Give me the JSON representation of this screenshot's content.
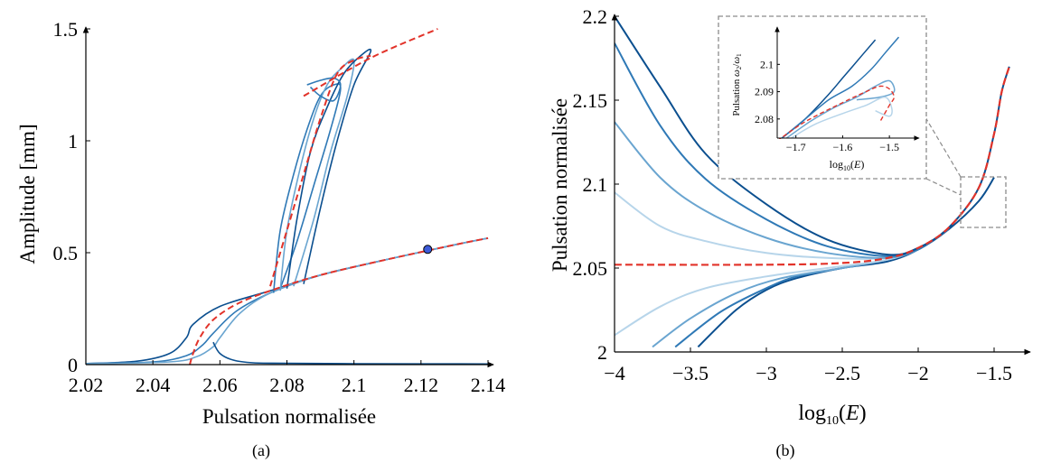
{
  "colors": {
    "branch_dark": "#0b4f8f",
    "branch_mid": "#2f79b6",
    "branch_light": "#6aa5d0",
    "branch_pale": "#b7d5ea",
    "backbone": "#e2332a",
    "marker_fill": "#3d5bd9",
    "inset_border": "#8c8c8c"
  },
  "chart_data": [
    {
      "type": "line",
      "caption": "(a)",
      "xlabel": "Pulsation normalisée",
      "ylabel": "Amplitude [mm]",
      "xlim": [
        2.02,
        2.14
      ],
      "ylim": [
        0,
        1.5
      ],
      "xticks": [
        "2.02",
        "2.04",
        "2.06",
        "2.08",
        "2.1",
        "2.12",
        "2.14"
      ],
      "yticks": [
        "0",
        "0.5",
        "1",
        "1.5"
      ],
      "grid": false,
      "marker": {
        "x": 2.122,
        "y": 0.515
      },
      "backbone": [
        {
          "name": "",
          "x": [
            2.051,
            2.052,
            2.054,
            2.058,
            2.065,
            2.075,
            2.09,
            2.11,
            2.13,
            2.14
          ],
          "y": [
            0.0,
            0.05,
            0.12,
            0.2,
            0.27,
            0.33,
            0.4,
            0.47,
            0.535,
            0.565
          ]
        },
        {
          "name": "",
          "x": [
            2.075,
            2.08,
            2.085,
            2.09,
            2.095,
            2.1,
            2.105
          ],
          "y": [
            0.35,
            0.6,
            0.85,
            1.1,
            1.3,
            1.36,
            1.38
          ]
        },
        {
          "name": "",
          "x": [
            2.085,
            2.105,
            2.125
          ],
          "y": [
            1.2,
            1.37,
            1.5
          ]
        }
      ],
      "series": [
        {
          "name": "",
          "x": [
            2.02,
            2.035,
            2.045,
            2.05,
            2.052,
            2.06,
            2.075,
            2.09,
            2.11,
            2.13,
            2.14
          ],
          "y": [
            0.005,
            0.015,
            0.05,
            0.12,
            0.18,
            0.26,
            0.33,
            0.4,
            0.47,
            0.535,
            0.565
          ]
        },
        {
          "name": "",
          "x": [
            2.02,
            2.04,
            2.05,
            2.055,
            2.058,
            2.065,
            2.075,
            2.09,
            2.11,
            2.13,
            2.14
          ],
          "y": [
            0.005,
            0.012,
            0.04,
            0.09,
            0.14,
            0.24,
            0.32,
            0.4,
            0.47,
            0.535,
            0.565
          ]
        },
        {
          "name": "",
          "x": [
            2.02,
            2.045,
            2.053,
            2.058,
            2.06,
            2.066,
            2.075,
            2.09,
            2.11,
            2.13,
            2.14
          ],
          "y": [
            0.004,
            0.012,
            0.035,
            0.08,
            0.12,
            0.23,
            0.32,
            0.4,
            0.47,
            0.535,
            0.565
          ]
        },
        {
          "name": "",
          "x": [
            2.058,
            2.06,
            2.064,
            2.07,
            2.08,
            2.1,
            2.14
          ],
          "y": [
            0.1,
            0.05,
            0.02,
            0.008,
            0.006,
            0.004,
            0.003
          ]
        },
        {
          "name": "",
          "x": [
            2.076,
            2.078,
            2.082,
            2.086,
            2.09,
            2.094,
            2.096,
            2.093,
            2.088,
            2.083,
            2.078
          ],
          "y": [
            0.32,
            0.6,
            0.85,
            1.05,
            1.2,
            1.25,
            1.23,
            1.05,
            0.8,
            0.55,
            0.34
          ]
        },
        {
          "name": "",
          "x": [
            2.078,
            2.08,
            2.084,
            2.088,
            2.092,
            2.096,
            2.1,
            2.098,
            2.093,
            2.088,
            2.082
          ],
          "y": [
            0.33,
            0.6,
            0.88,
            1.1,
            1.25,
            1.32,
            1.36,
            1.2,
            0.95,
            0.65,
            0.35
          ]
        },
        {
          "name": "",
          "x": [
            2.08,
            2.083,
            2.087,
            2.092,
            2.097,
            2.102,
            2.105,
            2.1,
            2.095,
            2.09,
            2.085
          ],
          "y": [
            0.34,
            0.65,
            0.95,
            1.15,
            1.3,
            1.38,
            1.4,
            1.25,
            1.0,
            0.7,
            0.36
          ]
        },
        {
          "name": "",
          "x": [
            2.086,
            2.09,
            2.094,
            2.096,
            2.094,
            2.09,
            2.087
          ],
          "y": [
            1.25,
            1.27,
            1.28,
            1.25,
            1.18,
            1.2,
            1.24
          ]
        }
      ]
    },
    {
      "type": "line",
      "caption": "(b)",
      "xlabel": "log10(E)",
      "ylabel": "Pulsation normalisée",
      "xlim": [
        -4,
        -1.3
      ],
      "ylim": [
        2.0,
        2.2
      ],
      "xticks": [
        "−4",
        "−3.5",
        "−3",
        "−2.5",
        "−2",
        "−1.5"
      ],
      "yticks": [
        "2",
        "2.05",
        "2.1",
        "2.15",
        "2.2"
      ],
      "grid": false,
      "backbone": {
        "name": "",
        "x": [
          -4,
          -3,
          -2.5,
          -2.2,
          -2.0,
          -1.8,
          -1.6,
          -1.5,
          -1.45,
          -1.4
        ],
        "y": [
          2.052,
          2.052,
          2.053,
          2.056,
          2.062,
          2.074,
          2.098,
          2.13,
          2.155,
          2.17
        ]
      },
      "series": [
        {
          "name": "",
          "x": [
            -3.45,
            -3.2,
            -3.0,
            -2.8,
            -2.5,
            -2.2,
            -2.0,
            -1.8,
            -1.6,
            -1.5
          ],
          "y": [
            2.003,
            2.025,
            2.037,
            2.044,
            2.05,
            2.054,
            2.061,
            2.073,
            2.09,
            2.104
          ]
        },
        {
          "name": "",
          "x": [
            -3.6,
            -3.3,
            -3.0,
            -2.8,
            -2.5,
            -2.2,
            -2.0,
            -1.8
          ],
          "y": [
            2.003,
            2.024,
            2.038,
            2.045,
            2.05,
            2.055,
            2.061,
            2.073
          ]
        },
        {
          "name": "",
          "x": [
            -3.75,
            -3.5,
            -3.2,
            -2.9,
            -2.5,
            -2.2,
            -2.0
          ],
          "y": [
            2.003,
            2.02,
            2.035,
            2.044,
            2.05,
            2.055,
            2.061
          ]
        },
        {
          "name": "",
          "x": [
            -4.0,
            -3.7,
            -3.4,
            -3.0,
            -2.6,
            -2.2,
            -2.0
          ],
          "y": [
            2.01,
            2.027,
            2.038,
            2.045,
            2.05,
            2.055,
            2.061
          ]
        },
        {
          "name": "",
          "x": [
            -4.0,
            -3.7,
            -3.4,
            -3.0,
            -2.6,
            -2.2,
            -2.0
          ],
          "y": [
            2.095,
            2.075,
            2.066,
            2.059,
            2.056,
            2.056,
            2.061
          ]
        },
        {
          "name": "",
          "x": [
            -4.0,
            -3.7,
            -3.4,
            -3.0,
            -2.6,
            -2.2,
            -2.0
          ],
          "y": [
            2.137,
            2.104,
            2.084,
            2.068,
            2.059,
            2.056,
            2.061
          ]
        },
        {
          "name": "",
          "x": [
            -4.0,
            -3.7,
            -3.4,
            -3.0,
            -2.6,
            -2.2,
            -2.0
          ],
          "y": [
            2.184,
            2.135,
            2.103,
            2.079,
            2.063,
            2.057,
            2.061
          ]
        },
        {
          "name": "",
          "x": [
            -4.0,
            -3.7,
            -3.4,
            -3.0,
            -2.6,
            -2.2,
            -2.0,
            -1.8,
            -1.6,
            -1.5,
            -1.45,
            -1.4
          ],
          "y": [
            2.2,
            2.158,
            2.118,
            2.088,
            2.067,
            2.058,
            2.062,
            2.074,
            2.098,
            2.13,
            2.155,
            2.17
          ]
        }
      ],
      "inset": {
        "xlabel": "log10(E)",
        "ylabel": "Pulsation ω2/ω1",
        "xlim": [
          -1.74,
          -1.45
        ],
        "ylim": [
          2.073,
          2.113
        ],
        "xticks": [
          "−1.7",
          "−1.6",
          "−1.5"
        ],
        "yticks": [
          "2.08",
          "2.09",
          "2.1"
        ],
        "series": [
          {
            "name": "",
            "x": [
              -1.73,
              -1.68,
              -1.63,
              -1.6,
              -1.56,
              -1.53
            ],
            "y": [
              2.073,
              2.08,
              2.089,
              2.095,
              2.103,
              2.109
            ]
          },
          {
            "name": "",
            "x": [
              -1.73,
              -1.68,
              -1.63,
              -1.58,
              -1.54,
              -1.51,
              -1.48
            ],
            "y": [
              2.073,
              2.08,
              2.087,
              2.092,
              2.098,
              2.104,
              2.11
            ]
          },
          {
            "name": "",
            "x": [
              -1.72,
              -1.67,
              -1.62,
              -1.57,
              -1.53,
              -1.5,
              -1.49,
              -1.52,
              -1.57
            ],
            "y": [
              2.073,
              2.079,
              2.084,
              2.088,
              2.092,
              2.094,
              2.09,
              2.088,
              2.087
            ]
          },
          {
            "name": "",
            "x": [
              -1.71,
              -1.66,
              -1.6,
              -1.55,
              -1.51,
              -1.495,
              -1.5,
              -1.53
            ],
            "y": [
              2.073,
              2.078,
              2.082,
              2.085,
              2.088,
              2.084,
              2.081,
              2.083
            ]
          }
        ],
        "backbone": {
          "name": "",
          "x": [
            -1.74,
            -1.68,
            -1.6,
            -1.55,
            -1.52,
            -1.5,
            -1.49,
            -1.5,
            -1.52
          ],
          "y": [
            2.072,
            2.079,
            2.086,
            2.09,
            2.092,
            2.091,
            2.088,
            2.085,
            2.079
          ]
        }
      }
    }
  ]
}
